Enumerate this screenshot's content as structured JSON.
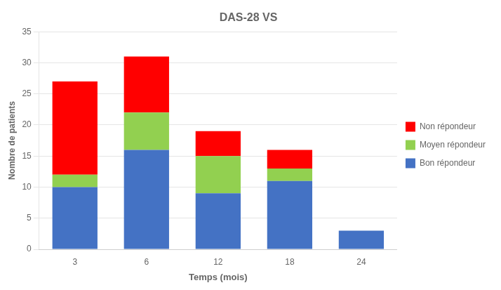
{
  "chart_data": {
    "type": "bar",
    "title": "DAS-28 VS",
    "xlabel": "Temps (mois)",
    "ylabel": "Nombre de patients",
    "categories": [
      "3",
      "6",
      "12",
      "18",
      "24"
    ],
    "series": [
      {
        "name": "Bon répondeur",
        "color": "#4472C4",
        "values": [
          10,
          16,
          9,
          11,
          3
        ]
      },
      {
        "name": "Moyen répondeur",
        "color": "#92D050",
        "values": [
          2,
          6,
          6,
          2,
          0
        ]
      },
      {
        "name": "Non répondeur",
        "color": "#FF0000",
        "values": [
          15,
          9,
          4,
          3,
          0
        ]
      }
    ],
    "stacked": true,
    "ylim": [
      0,
      35
    ],
    "yticks": [
      0,
      5,
      10,
      15,
      20,
      25,
      30,
      35
    ],
    "grid": true,
    "legend": "right"
  }
}
